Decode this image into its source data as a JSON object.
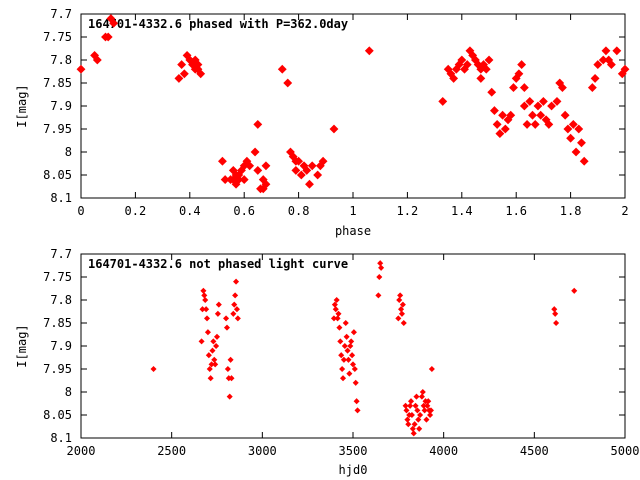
{
  "colors": {
    "points": "#ff0000",
    "axes": "#000000",
    "background": "#ffffff"
  },
  "chart_data": [
    {
      "type": "scatter",
      "title": "164701-4332.6 phased with P=362.0day",
      "xlabel": "phase",
      "ylabel": "I[mag]",
      "xlim": [
        0,
        2
      ],
      "ylim": [
        8.1,
        7.7
      ],
      "y_inverted": true,
      "grid": false,
      "marker": "filled-diamond",
      "xticks": [
        "0",
        "0.2",
        "0.4",
        "0.6",
        "0.8",
        "1",
        "1.2",
        "1.4",
        "1.6",
        "1.8",
        "2"
      ],
      "yticks": [
        "7.7",
        "7.75",
        "7.8",
        "7.85",
        "7.9",
        "7.95",
        "8",
        "8.05",
        "8.1"
      ],
      "points": [
        [
          0.0,
          7.82
        ],
        [
          0.05,
          7.79
        ],
        [
          0.06,
          7.8
        ],
        [
          0.09,
          7.75
        ],
        [
          0.1,
          7.75
        ],
        [
          0.11,
          7.71
        ],
        [
          0.12,
          7.72
        ],
        [
          0.36,
          7.84
        ],
        [
          0.37,
          7.81
        ],
        [
          0.38,
          7.83
        ],
        [
          0.39,
          7.79
        ],
        [
          0.4,
          7.8
        ],
        [
          0.41,
          7.81
        ],
        [
          0.42,
          7.8
        ],
        [
          0.42,
          7.82
        ],
        [
          0.43,
          7.82
        ],
        [
          0.43,
          7.81
        ],
        [
          0.44,
          7.83
        ],
        [
          0.52,
          8.02
        ],
        [
          0.53,
          8.06
        ],
        [
          0.55,
          8.06
        ],
        [
          0.56,
          8.04
        ],
        [
          0.56,
          8.06
        ],
        [
          0.57,
          8.05
        ],
        [
          0.57,
          8.07
        ],
        [
          0.58,
          8.05
        ],
        [
          0.58,
          8.06
        ],
        [
          0.59,
          8.04
        ],
        [
          0.6,
          8.03
        ],
        [
          0.6,
          8.06
        ],
        [
          0.61,
          8.02
        ],
        [
          0.62,
          8.03
        ],
        [
          0.64,
          8.0
        ],
        [
          0.65,
          7.94
        ],
        [
          0.65,
          8.04
        ],
        [
          0.66,
          8.08
        ],
        [
          0.67,
          8.06
        ],
        [
          0.67,
          8.08
        ],
        [
          0.68,
          8.07
        ],
        [
          0.68,
          8.03
        ],
        [
          0.74,
          7.82
        ],
        [
          0.76,
          7.85
        ],
        [
          0.77,
          8.0
        ],
        [
          0.78,
          8.01
        ],
        [
          0.79,
          8.02
        ],
        [
          0.79,
          8.04
        ],
        [
          0.8,
          8.02
        ],
        [
          0.81,
          8.05
        ],
        [
          0.82,
          8.03
        ],
        [
          0.83,
          8.04
        ],
        [
          0.84,
          8.07
        ],
        [
          0.85,
          8.03
        ],
        [
          0.87,
          8.05
        ],
        [
          0.88,
          8.03
        ],
        [
          0.89,
          8.02
        ],
        [
          0.93,
          7.95
        ],
        [
          1.06,
          7.78
        ],
        [
          1.33,
          7.89
        ],
        [
          1.35,
          7.82
        ],
        [
          1.36,
          7.83
        ],
        [
          1.37,
          7.84
        ],
        [
          1.38,
          7.82
        ],
        [
          1.39,
          7.81
        ],
        [
          1.4,
          7.8
        ],
        [
          1.41,
          7.82
        ],
        [
          1.42,
          7.81
        ],
        [
          1.43,
          7.78
        ],
        [
          1.44,
          7.79
        ],
        [
          1.45,
          7.8
        ],
        [
          1.46,
          7.81
        ],
        [
          1.47,
          7.82
        ],
        [
          1.47,
          7.84
        ],
        [
          1.48,
          7.81
        ],
        [
          1.49,
          7.82
        ],
        [
          1.5,
          7.8
        ],
        [
          1.51,
          7.87
        ],
        [
          1.52,
          7.91
        ],
        [
          1.53,
          7.94
        ],
        [
          1.54,
          7.96
        ],
        [
          1.55,
          7.92
        ],
        [
          1.56,
          7.95
        ],
        [
          1.57,
          7.93
        ],
        [
          1.58,
          7.92
        ],
        [
          1.59,
          7.86
        ],
        [
          1.6,
          7.84
        ],
        [
          1.61,
          7.83
        ],
        [
          1.62,
          7.81
        ],
        [
          1.63,
          7.86
        ],
        [
          1.63,
          7.9
        ],
        [
          1.64,
          7.94
        ],
        [
          1.65,
          7.89
        ],
        [
          1.66,
          7.92
        ],
        [
          1.67,
          7.94
        ],
        [
          1.68,
          7.9
        ],
        [
          1.69,
          7.92
        ],
        [
          1.7,
          7.89
        ],
        [
          1.71,
          7.93
        ],
        [
          1.72,
          7.94
        ],
        [
          1.73,
          7.9
        ],
        [
          1.75,
          7.89
        ],
        [
          1.76,
          7.85
        ],
        [
          1.77,
          7.86
        ],
        [
          1.78,
          7.92
        ],
        [
          1.79,
          7.95
        ],
        [
          1.8,
          7.97
        ],
        [
          1.81,
          7.94
        ],
        [
          1.82,
          8.0
        ],
        [
          1.83,
          7.95
        ],
        [
          1.84,
          7.98
        ],
        [
          1.85,
          8.02
        ],
        [
          1.88,
          7.86
        ],
        [
          1.89,
          7.84
        ],
        [
          1.9,
          7.81
        ],
        [
          1.92,
          7.8
        ],
        [
          1.93,
          7.78
        ],
        [
          1.94,
          7.8
        ],
        [
          1.95,
          7.81
        ],
        [
          1.97,
          7.78
        ],
        [
          1.99,
          7.83
        ],
        [
          2.0,
          7.82
        ]
      ]
    },
    {
      "type": "scatter",
      "title": "164701-4332.6 not phased light curve",
      "xlabel": "hjd0",
      "ylabel": "I[mag]",
      "xlim": [
        2000,
        5000
      ],
      "ylim": [
        8.1,
        7.7
      ],
      "y_inverted": true,
      "grid": false,
      "marker": "small-diamond",
      "xticks": [
        "2000",
        "2500",
        "3000",
        "3500",
        "4000",
        "4500",
        "5000"
      ],
      "yticks": [
        "7.7",
        "7.75",
        "7.8",
        "7.85",
        "7.9",
        "7.95",
        "8",
        "8.05",
        "8.1"
      ],
      "points": [
        [
          2400,
          7.95
        ],
        [
          2665,
          7.89
        ],
        [
          2670,
          7.82
        ],
        [
          2675,
          7.78
        ],
        [
          2680,
          7.79
        ],
        [
          2685,
          7.8
        ],
        [
          2690,
          7.82
        ],
        [
          2695,
          7.84
        ],
        [
          2700,
          7.87
        ],
        [
          2705,
          7.92
        ],
        [
          2710,
          7.95
        ],
        [
          2715,
          7.97
        ],
        [
          2720,
          7.94
        ],
        [
          2725,
          7.91
        ],
        [
          2730,
          7.89
        ],
        [
          2735,
          7.93
        ],
        [
          2740,
          7.94
        ],
        [
          2745,
          7.9
        ],
        [
          2750,
          7.88
        ],
        [
          2755,
          7.83
        ],
        [
          2760,
          7.81
        ],
        [
          2800,
          7.84
        ],
        [
          2805,
          7.86
        ],
        [
          2810,
          7.95
        ],
        [
          2815,
          7.97
        ],
        [
          2820,
          8.01
        ],
        [
          2825,
          7.93
        ],
        [
          2830,
          7.97
        ],
        [
          2840,
          7.83
        ],
        [
          2845,
          7.81
        ],
        [
          2850,
          7.79
        ],
        [
          2855,
          7.76
        ],
        [
          2860,
          7.82
        ],
        [
          2865,
          7.84
        ],
        [
          3395,
          7.84
        ],
        [
          3400,
          7.81
        ],
        [
          3405,
          7.82
        ],
        [
          3410,
          7.8
        ],
        [
          3415,
          7.84
        ],
        [
          3420,
          7.83
        ],
        [
          3425,
          7.86
        ],
        [
          3430,
          7.89
        ],
        [
          3435,
          7.92
        ],
        [
          3440,
          7.95
        ],
        [
          3445,
          7.97
        ],
        [
          3450,
          7.93
        ],
        [
          3455,
          7.9
        ],
        [
          3460,
          7.85
        ],
        [
          3465,
          7.88
        ],
        [
          3470,
          7.91
        ],
        [
          3475,
          7.93
        ],
        [
          3480,
          7.96
        ],
        [
          3485,
          7.9
        ],
        [
          3490,
          7.89
        ],
        [
          3495,
          7.92
        ],
        [
          3500,
          7.94
        ],
        [
          3505,
          7.87
        ],
        [
          3510,
          7.95
        ],
        [
          3515,
          7.98
        ],
        [
          3520,
          8.02
        ],
        [
          3525,
          8.04
        ],
        [
          3640,
          7.79
        ],
        [
          3645,
          7.75
        ],
        [
          3650,
          7.72
        ],
        [
          3655,
          7.73
        ],
        [
          3750,
          7.84
        ],
        [
          3755,
          7.8
        ],
        [
          3760,
          7.79
        ],
        [
          3765,
          7.82
        ],
        [
          3770,
          7.83
        ],
        [
          3775,
          7.81
        ],
        [
          3780,
          7.85
        ],
        [
          3790,
          8.03
        ],
        [
          3795,
          8.04
        ],
        [
          3800,
          8.06
        ],
        [
          3805,
          8.07
        ],
        [
          3810,
          8.05
        ],
        [
          3815,
          8.03
        ],
        [
          3820,
          8.02
        ],
        [
          3825,
          8.05
        ],
        [
          3830,
          8.08
        ],
        [
          3835,
          8.09
        ],
        [
          3840,
          8.07
        ],
        [
          3845,
          8.03
        ],
        [
          3850,
          8.01
        ],
        [
          3855,
          8.04
        ],
        [
          3860,
          8.06
        ],
        [
          3865,
          8.08
        ],
        [
          3870,
          8.05
        ],
        [
          3880,
          8.01
        ],
        [
          3885,
          8.0
        ],
        [
          3890,
          8.03
        ],
        [
          3895,
          8.04
        ],
        [
          3900,
          8.02
        ],
        [
          3905,
          8.06
        ],
        [
          3910,
          8.03
        ],
        [
          3915,
          8.02
        ],
        [
          3920,
          8.04
        ],
        [
          3925,
          8.05
        ],
        [
          3930,
          8.04
        ],
        [
          3935,
          7.95
        ],
        [
          4610,
          7.82
        ],
        [
          4615,
          7.83
        ],
        [
          4620,
          7.85
        ],
        [
          4720,
          7.78
        ]
      ]
    }
  ]
}
